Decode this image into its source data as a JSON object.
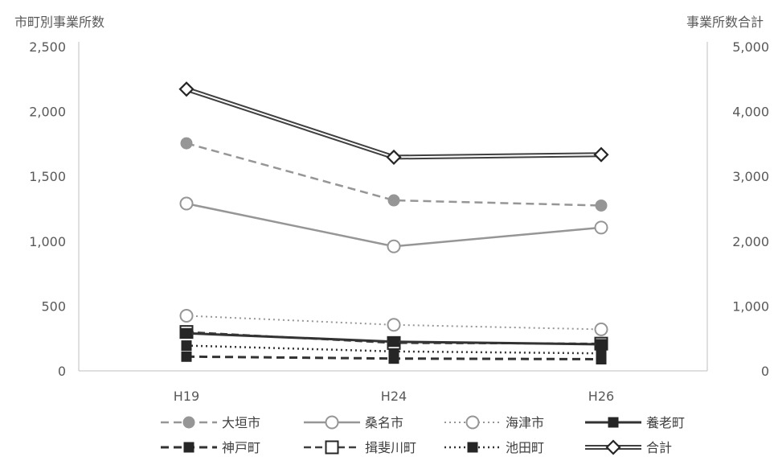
{
  "chart_data": {
    "type": "line",
    "y_left_title": "市町別事業所数",
    "y_right_title": "事業所数合計",
    "categories": [
      "H19",
      "H24",
      "H26"
    ],
    "y_left_ticks": [
      "0",
      "500",
      "1,000",
      "1,500",
      "2,000",
      "2,500"
    ],
    "y_right_ticks": [
      "0",
      "1,000",
      "2,000",
      "3,000",
      "4,000",
      "5,000"
    ],
    "ylim_left": [
      0,
      2500
    ],
    "ylim_right": [
      0,
      5000
    ],
    "grid": false,
    "legend_position": "bottom",
    "series": [
      {
        "name": "大垣市",
        "axis": "left",
        "values": [
          1755,
          1315,
          1275
        ],
        "color": "#969696",
        "dash": "10,6",
        "marker": "circle-filled",
        "width": 2.5
      },
      {
        "name": "桑名市",
        "axis": "left",
        "values": [
          1290,
          960,
          1105
        ],
        "color": "#969696",
        "dash": "",
        "marker": "circle-open",
        "width": 2.5
      },
      {
        "name": "海津市",
        "axis": "left",
        "values": [
          425,
          355,
          320
        ],
        "color": "#969696",
        "dash": "2,4",
        "marker": "circle-open",
        "width": 2
      },
      {
        "name": "養老町",
        "axis": "left",
        "values": [
          290,
          225,
          205
        ],
        "color": "#333333",
        "dash": "",
        "marker": "square-filled",
        "width": 3
      },
      {
        "name": "神戸町",
        "axis": "left",
        "values": [
          110,
          95,
          90
        ],
        "color": "#333333",
        "dash": "10,6",
        "marker": "square-filled",
        "width": 3
      },
      {
        "name": "揖斐川町",
        "axis": "left",
        "values": [
          300,
          215,
          210
        ],
        "color": "#404040",
        "dash": "9,5",
        "marker": "square-open",
        "width": 2.5
      },
      {
        "name": "池田町",
        "axis": "left",
        "values": [
          195,
          150,
          135
        ],
        "color": "#333333",
        "dash": "2,4",
        "marker": "square-filled",
        "width": 2.5
      },
      {
        "name": "合計",
        "axis": "right",
        "values": [
          4345,
          3295,
          3335
        ],
        "color": "#404040",
        "dash": "",
        "marker": "diamond-open",
        "width": 2,
        "double": true
      }
    ]
  }
}
